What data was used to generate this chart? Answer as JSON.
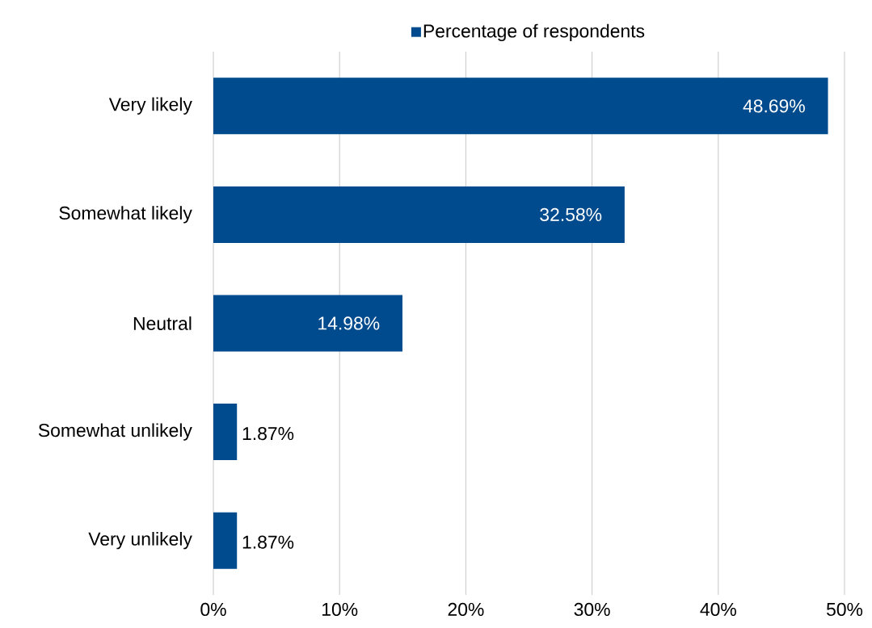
{
  "chart_data": {
    "type": "bar",
    "orientation": "horizontal",
    "categories": [
      "Very likely",
      "Somewhat likely",
      "Neutral",
      "Somewhat unlikely",
      "Very unlikely"
    ],
    "series": [
      {
        "name": "Percentage of respondents",
        "color": "#004b8d",
        "values": [
          48.69,
          32.58,
          14.98,
          1.87,
          1.87
        ],
        "value_labels": [
          "48.69%",
          "32.58%",
          "14.98%",
          "1.87%",
          "1.87%"
        ]
      }
    ],
    "xlim": [
      0,
      50
    ],
    "xticks": [
      {
        "value": 0,
        "label": "0%"
      },
      {
        "value": 10,
        "label": "10%"
      },
      {
        "value": 20,
        "label": "20%"
      },
      {
        "value": 30,
        "label": "30%"
      },
      {
        "value": 40,
        "label": "40%"
      },
      {
        "value": 50,
        "label": "50%"
      }
    ],
    "grid": "x",
    "legend": "top"
  }
}
